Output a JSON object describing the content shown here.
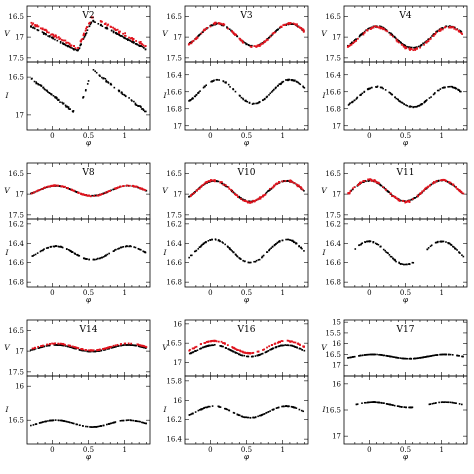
{
  "figure": {
    "x_axis_label": "φ",
    "colors": {
      "v_black": "#000000",
      "v_red": "#e0141e",
      "i_band": "#000000"
    },
    "x_ticks": [
      "0",
      "0.5",
      "1"
    ],
    "x_range": [
      -0.35,
      1.35
    ]
  },
  "chart_data": [
    {
      "panel": "V2",
      "type": "scatter",
      "title": "V2",
      "v": {
        "ylabel": "V",
        "ylim": [
          17.6,
          16.25
        ],
        "ticks": [
          "16.5",
          "17",
          "17.5"
        ],
        "shape": "saw",
        "mean": 16.97,
        "amplitude": 0.37,
        "min_phase": 0.55,
        "rise": 0.2,
        "red_offset": -0.08
      },
      "i": {
        "ylabel": "I",
        "ylim": [
          17.2,
          16.3
        ],
        "ticks": [
          "16.5",
          "17"
        ],
        "shape": "saw",
        "mean": 16.7,
        "amplitude": 0.3,
        "min_phase": 0.55,
        "rise": 0.2,
        "gaps": [
          [
            0.3,
            0.42
          ]
        ]
      }
    },
    {
      "panel": "V3",
      "type": "scatter",
      "title": "V3",
      "v": {
        "ylabel": "V",
        "ylim": [
          17.6,
          16.25
        ],
        "ticks": [
          "16.5",
          "17",
          "17.5"
        ],
        "shape": "sine",
        "mean": 16.95,
        "amplitude": 0.27,
        "min_phase": 0.6,
        "red_offset": 0.0
      },
      "i": {
        "ylabel": "I",
        "ylim": [
          17.05,
          16.25
        ],
        "ticks": [
          "16.4",
          "16.6",
          "16.8",
          "17"
        ],
        "shape": "sine",
        "mean": 16.6,
        "amplitude": 0.14,
        "min_phase": 0.6,
        "gaps": []
      }
    },
    {
      "panel": "V4",
      "type": "scatter",
      "title": "V4",
      "v": {
        "ylabel": "V",
        "ylim": [
          17.6,
          16.25
        ],
        "ticks": [
          "16.5",
          "17",
          "17.5"
        ],
        "shape": "sine",
        "mean": 17.0,
        "amplitude": 0.26,
        "min_phase": 0.6,
        "red_offset": 0.03
      },
      "i": {
        "ylabel": "I",
        "ylim": [
          17.05,
          16.25
        ],
        "ticks": [
          "16.4",
          "16.6",
          "16.8",
          "17"
        ],
        "shape": "sine",
        "mean": 16.66,
        "amplitude": 0.12,
        "min_phase": 0.6,
        "gaps": []
      }
    },
    {
      "panel": "V8",
      "type": "scatter",
      "title": "V8",
      "v": {
        "ylabel": "V",
        "ylim": [
          17.6,
          16.25
        ],
        "ticks": [
          "16.5",
          "17",
          "17.5"
        ],
        "shape": "sine",
        "mean": 16.92,
        "amplitude": 0.12,
        "min_phase": 0.55,
        "red_offset": 0.0
      },
      "i": {
        "ylabel": "I",
        "ylim": [
          16.85,
          16.15
        ],
        "ticks": [
          "16.2",
          "16.4",
          "16.6",
          "16.8"
        ],
        "shape": "sine",
        "mean": 16.5,
        "amplitude": 0.07,
        "min_phase": 0.55,
        "gaps": []
      }
    },
    {
      "panel": "V10",
      "type": "scatter",
      "title": "V10",
      "v": {
        "ylabel": "V",
        "ylim": [
          17.6,
          16.25
        ],
        "ticks": [
          "16.5",
          "17",
          "17.5"
        ],
        "shape": "sine",
        "mean": 16.93,
        "amplitude": 0.25,
        "min_phase": 0.55,
        "red_offset": 0.0
      },
      "i": {
        "ylabel": "I",
        "ylim": [
          16.85,
          16.15
        ],
        "ticks": [
          "16.2",
          "16.4",
          "16.6",
          "16.8"
        ],
        "shape": "sine",
        "mean": 16.48,
        "amplitude": 0.12,
        "min_phase": 0.55,
        "gaps": []
      }
    },
    {
      "panel": "V11",
      "type": "scatter",
      "title": "V11",
      "v": {
        "ylabel": "V",
        "ylim": [
          17.6,
          16.25
        ],
        "ticks": [
          "16.5",
          "17",
          "17.5"
        ],
        "shape": "sine",
        "mean": 16.92,
        "amplitude": 0.25,
        "min_phase": 0.5,
        "red_offset": 0.0
      },
      "i": {
        "ylabel": "I",
        "ylim": [
          16.85,
          16.15
        ],
        "ticks": [
          "16.2",
          "16.4",
          "16.6",
          "16.8"
        ],
        "shape": "sine",
        "mean": 16.5,
        "amplitude": 0.12,
        "min_phase": 0.5,
        "gaps": [
          [
            0.62,
            0.78
          ]
        ]
      }
    },
    {
      "panel": "V14",
      "type": "scatter",
      "title": "V14",
      "v": {
        "ylabel": "V",
        "ylim": [
          17.6,
          16.25
        ],
        "ticks": [
          "16.5",
          "17",
          "17.5"
        ],
        "shape": "sine",
        "mean": 16.93,
        "amplitude": 0.08,
        "min_phase": 0.55,
        "red_offset": -0.03
      },
      "i": {
        "ylabel": "I",
        "ylim": [
          16.85,
          15.85
        ],
        "ticks": [
          "16",
          "16.5"
        ],
        "shape": "sine",
        "mean": 16.55,
        "amplitude": 0.05,
        "min_phase": 0.55,
        "gaps": []
      }
    },
    {
      "panel": "V16",
      "type": "scatter",
      "title": "V16",
      "v": {
        "ylabel": "V",
        "ylim": [
          17.35,
          15.9
        ],
        "ticks": [
          "16",
          "16.5",
          "17"
        ],
        "shape": "sine",
        "mean": 16.7,
        "amplitude": 0.15,
        "min_phase": 0.55,
        "red_offset": -0.1
      },
      "i": {
        "ylabel": "I",
        "ylim": [
          16.45,
          15.75
        ],
        "ticks": [
          "15.8",
          "16",
          "16.2",
          "16.4"
        ],
        "shape": "sine",
        "mean": 16.12,
        "amplitude": 0.06,
        "min_phase": 0.55,
        "gaps": []
      }
    },
    {
      "panel": "V17",
      "type": "scatter",
      "title": "V17",
      "v": {
        "ylabel": "V",
        "ylim": [
          17.5,
          14.9
        ],
        "ticks": [
          "15",
          "15.5",
          "16",
          "16.5",
          "17"
        ],
        "shape": "sine",
        "mean": 16.6,
        "amplitude": 0.1,
        "min_phase": 0.55,
        "red_offset": null
      },
      "i": {
        "ylabel": "I",
        "ylim": [
          17.15,
          15.85
        ],
        "ticks": [
          "16",
          "16.5",
          "17"
        ],
        "shape": "sine",
        "mean": 16.4,
        "amplitude": 0.05,
        "min_phase": 0.55,
        "gaps": [
          [
            0.6,
            0.82
          ]
        ]
      }
    }
  ]
}
